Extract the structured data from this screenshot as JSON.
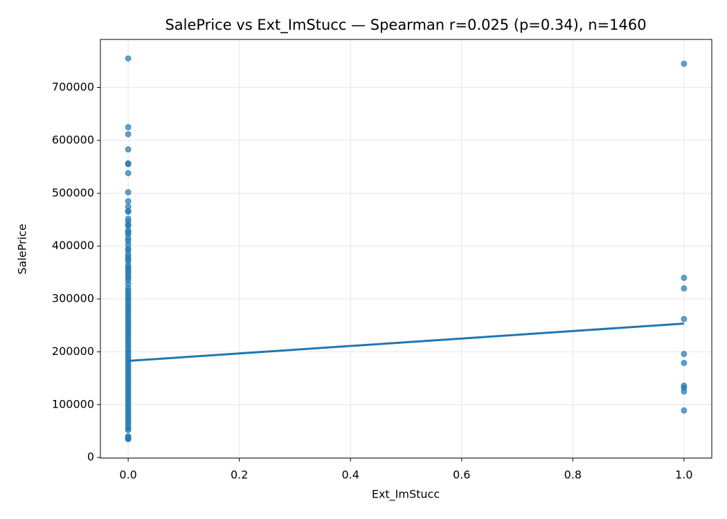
{
  "chart_data": {
    "type": "scatter",
    "title": "SalePrice vs Ext_ImStucc — Spearman r=0.025 (p=0.34), n=1460",
    "xlabel": "Ext_ImStucc",
    "ylabel": "SalePrice",
    "color": "#1f77b4",
    "grid": true,
    "xlim": [
      -0.05,
      1.05
    ],
    "ylim": [
      -1100,
      791000
    ],
    "xticks": [
      {
        "value": 0,
        "label": "0.0"
      },
      {
        "value": 0.2,
        "label": "0.2"
      },
      {
        "value": 0.4,
        "label": "0.4"
      },
      {
        "value": 0.6,
        "label": "0.6"
      },
      {
        "value": 0.8,
        "label": "0.8"
      },
      {
        "value": 1,
        "label": "1.0"
      }
    ],
    "yticks": [
      0,
      100000,
      200000,
      300000,
      400000,
      500000,
      600000,
      700000
    ],
    "points": {
      "x": [
        0,
        0,
        0,
        0,
        0,
        0,
        0,
        0,
        0,
        0,
        0,
        0,
        0,
        0,
        0,
        0,
        0,
        0,
        0,
        0,
        0,
        0,
        0,
        0,
        0,
        0,
        0,
        0,
        0,
        0,
        0,
        0,
        0,
        0,
        0,
        0,
        0,
        0,
        0,
        0,
        0,
        0,
        0,
        0,
        0,
        0,
        0,
        0,
        0,
        0,
        0,
        0,
        0,
        0,
        0,
        0,
        0,
        0,
        0,
        0,
        0,
        0,
        0,
        0,
        0,
        0,
        0,
        0,
        0,
        0,
        0,
        0,
        0,
        0,
        0,
        0,
        0,
        0,
        0,
        0,
        0,
        0,
        0,
        0,
        0,
        0,
        0,
        0,
        0,
        0,
        0,
        0,
        0,
        0,
        0,
        1,
        1,
        1,
        1,
        1,
        1,
        1,
        1,
        1,
        1
      ],
      "y": [
        755000,
        625000,
        611657,
        582933,
        556581,
        555000,
        538000,
        501837,
        485000,
        475000,
        466500,
        465000,
        451950,
        446261,
        440000,
        438780,
        430000,
        426000,
        423000,
        415298,
        410000,
        402861,
        395000,
        392500,
        385000,
        380000,
        375000,
        370878,
        363000,
        359100,
        354000,
        350000,
        345000,
        340000,
        335000,
        328000,
        320000,
        315000,
        310000,
        305000,
        300000,
        295000,
        290000,
        285000,
        280000,
        275000,
        270000,
        265000,
        260000,
        255000,
        250000,
        245000,
        240000,
        235000,
        230000,
        225000,
        220000,
        215000,
        210000,
        205000,
        200000,
        195000,
        190000,
        185000,
        180000,
        175000,
        170000,
        165000,
        160000,
        155000,
        150000,
        145000,
        140000,
        135000,
        130000,
        125000,
        120000,
        115000,
        110000,
        105000,
        100000,
        95000,
        90000,
        85000,
        80000,
        75000,
        70000,
        65000,
        60000,
        55000,
        52000,
        40000,
        37900,
        35311,
        34900,
        745000,
        340000,
        320000,
        262000,
        196000,
        179000,
        136000,
        132000,
        125000,
        89000
      ]
    },
    "fit_line": {
      "x": [
        0,
        1
      ],
      "y": [
        182800,
        253400
      ]
    }
  }
}
